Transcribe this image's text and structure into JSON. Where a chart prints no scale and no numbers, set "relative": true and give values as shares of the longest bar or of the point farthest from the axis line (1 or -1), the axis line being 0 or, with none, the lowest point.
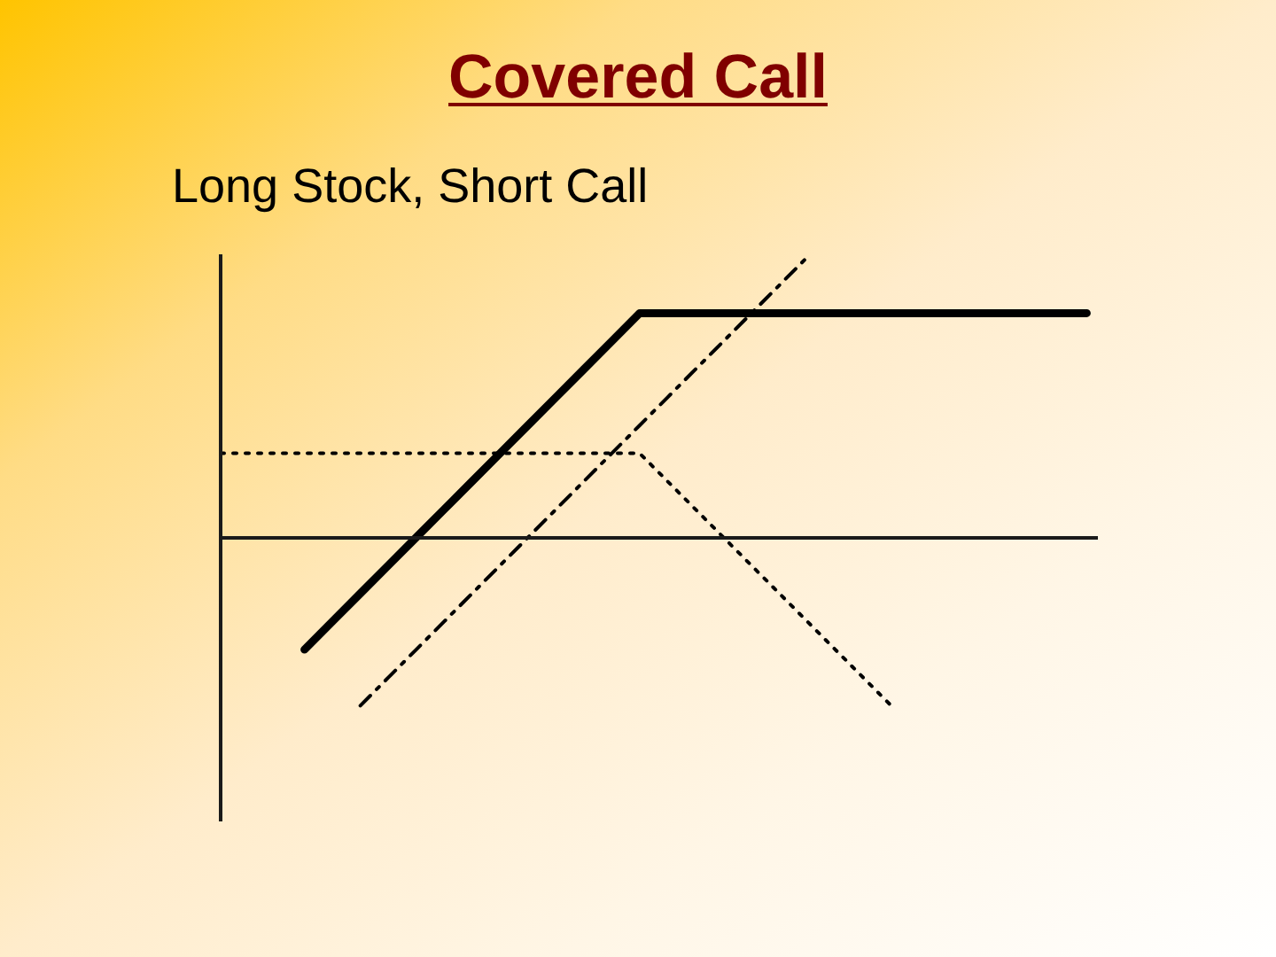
{
  "chart_data": {
    "type": "line",
    "title": "Covered Call",
    "subtitle": "Long Stock, Short Call",
    "relative": true,
    "categories": [
      null,
      null,
      null,
      null,
      null,
      null,
      null,
      null,
      null,
      null,
      null,
      null,
      null,
      null,
      null,
      null,
      null,
      null,
      null,
      null,
      null,
      null,
      null,
      null,
      null,
      null,
      null,
      null,
      null,
      null,
      null,
      null
    ],
    "series": [
      {
        "color": "#000000",
        "line_style": "solid",
        "values": [
          null,
          null,
          null,
          -0.4,
          -0.3,
          -0.2,
          -0.1,
          0,
          0.1,
          0.2,
          0.3,
          0.4,
          0.5,
          0.6,
          0.7,
          0.8,
          0.8,
          0.8,
          0.8,
          0.8,
          0.8,
          0.8,
          0.8,
          0.8,
          0.8,
          0.8,
          0.8,
          0.8,
          0.8,
          0.8,
          0.8,
          0.8
        ]
      },
      {
        "color": "#000000",
        "line_style": "dashdot",
        "values": [
          null,
          null,
          null,
          null,
          null,
          -0.6,
          -0.5,
          -0.4,
          -0.3,
          -0.2,
          -0.1,
          0,
          0.1,
          0.2,
          0.3,
          0.4,
          0.5,
          0.6,
          0.7,
          0.8,
          0.9,
          1.0,
          null,
          null,
          null,
          null,
          null,
          null,
          null,
          null,
          null,
          null
        ]
      },
      {
        "color": "#000000",
        "line_style": "dotted",
        "values": [
          0.3,
          0.3,
          0.3,
          0.3,
          0.3,
          0.3,
          0.3,
          0.3,
          0.3,
          0.3,
          0.3,
          0.3,
          0.3,
          0.3,
          0.3,
          0.3,
          0.2,
          0.1,
          0,
          -0.1,
          -0.2,
          -0.3,
          -0.4,
          -0.5,
          -0.6,
          null,
          null,
          null,
          null,
          null,
          null,
          null
        ]
      }
    ]
  }
}
